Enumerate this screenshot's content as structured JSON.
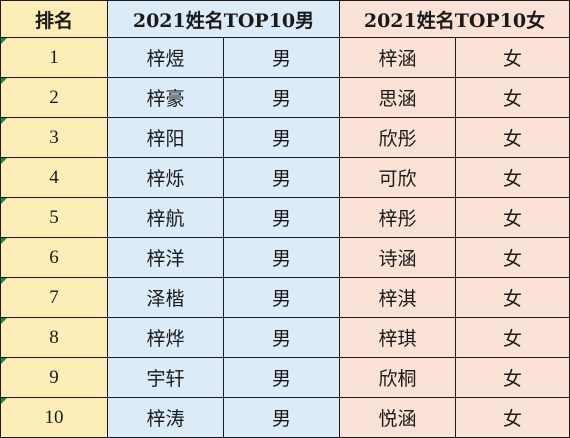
{
  "header": {
    "rank": "排名",
    "male": "2021姓名TOP10男",
    "female": "2021姓名TOP10女"
  },
  "rows": [
    {
      "rank": "1",
      "male_name": "梓煜",
      "male_gender": "男",
      "female_name": "梓涵",
      "female_gender": "女"
    },
    {
      "rank": "2",
      "male_name": "梓豪",
      "male_gender": "男",
      "female_name": "思涵",
      "female_gender": "女"
    },
    {
      "rank": "3",
      "male_name": "梓阳",
      "male_gender": "男",
      "female_name": "欣彤",
      "female_gender": "女"
    },
    {
      "rank": "4",
      "male_name": "梓烁",
      "male_gender": "男",
      "female_name": "可欣",
      "female_gender": "女"
    },
    {
      "rank": "5",
      "male_name": "梓航",
      "male_gender": "男",
      "female_name": "梓彤",
      "female_gender": "女"
    },
    {
      "rank": "6",
      "male_name": "梓洋",
      "male_gender": "男",
      "female_name": "诗涵",
      "female_gender": "女"
    },
    {
      "rank": "7",
      "male_name": "泽楷",
      "male_gender": "男",
      "female_name": "梓淇",
      "female_gender": "女"
    },
    {
      "rank": "8",
      "male_name": "梓烨",
      "male_gender": "男",
      "female_name": "梓琪",
      "female_gender": "女"
    },
    {
      "rank": "9",
      "male_name": "宇轩",
      "male_gender": "男",
      "female_name": "欣桐",
      "female_gender": "女"
    },
    {
      "rank": "10",
      "male_name": "梓涛",
      "male_gender": "男",
      "female_name": "悦涵",
      "female_gender": "女"
    }
  ],
  "colors": {
    "rank_fill": "#fdedb7",
    "male_fill": "#dcebf8",
    "female_fill": "#fbe2d6",
    "grid_line": "#1a1a1a",
    "cell_marker": "#1e8a3c"
  }
}
